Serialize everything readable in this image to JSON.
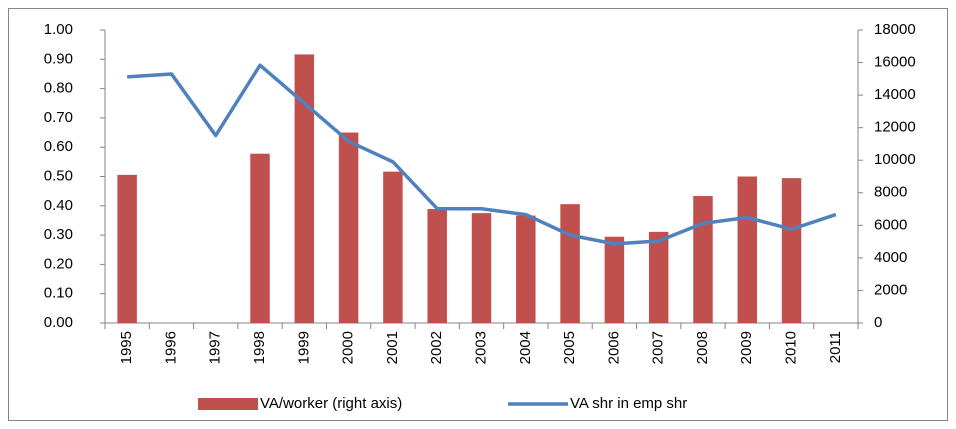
{
  "chart_data": {
    "type": "bar_line",
    "categories": [
      "1995",
      "1996",
      "1997",
      "1998",
      "1999",
      "2000",
      "2001",
      "2002",
      "2003",
      "2004",
      "2005",
      "2006",
      "2007",
      "2008",
      "2009",
      "2010",
      "2011"
    ],
    "series": [
      {
        "name": "VA/worker (right axis)",
        "type": "bar",
        "axis": "y2",
        "color": "#c0504d",
        "values": [
          9100,
          null,
          null,
          10400,
          16500,
          11700,
          9300,
          7000,
          6750,
          6600,
          7300,
          5300,
          5600,
          7800,
          9000,
          8900,
          null
        ]
      },
      {
        "name": "VA shr in emp shr",
        "type": "line",
        "color": "#4f81bd",
        "values": [
          0.84,
          0.85,
          0.64,
          0.88,
          0.75,
          0.62,
          0.55,
          0.39,
          0.39,
          0.37,
          0.3,
          0.27,
          0.28,
          0.34,
          0.36,
          0.32,
          0.37
        ]
      }
    ],
    "ylim": [
      0,
      1
    ],
    "yticks": [
      {
        "value": 0,
        "label": "0.00"
      },
      {
        "value": 0.1,
        "label": "0.10"
      },
      {
        "value": 0.2,
        "label": "0.20"
      },
      {
        "value": 0.3,
        "label": "0.30"
      },
      {
        "value": 0.4,
        "label": "0.40"
      },
      {
        "value": 0.5,
        "label": "0.50"
      },
      {
        "value": 0.6,
        "label": "0.60"
      },
      {
        "value": 0.7,
        "label": "0.70"
      },
      {
        "value": 0.8,
        "label": "0.80"
      },
      {
        "value": 0.9,
        "label": "0.90"
      },
      {
        "value": 1,
        "label": "1.00"
      }
    ],
    "y2lim": [
      0,
      18000
    ],
    "y2ticks": [
      0,
      2000,
      4000,
      6000,
      8000,
      10000,
      12000,
      14000,
      16000,
      18000
    ],
    "legend": "bottom"
  }
}
